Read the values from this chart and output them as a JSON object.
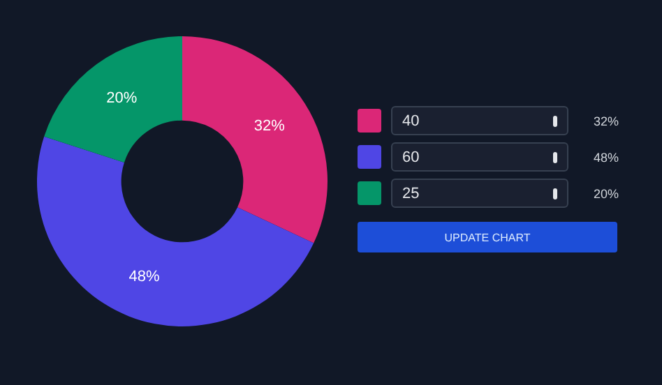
{
  "chart_data": {
    "type": "donut",
    "categories": [
      null,
      null,
      null
    ],
    "values": [
      32,
      48,
      20
    ],
    "colors": [
      "#db2777",
      "#4f46e5",
      "#059669"
    ],
    "value_labels": [
      "32%",
      "48%",
      "20%"
    ],
    "annotations": [
      "40",
      "60",
      "25",
      "UPDATE CHART"
    ],
    "legend": false
  }
}
